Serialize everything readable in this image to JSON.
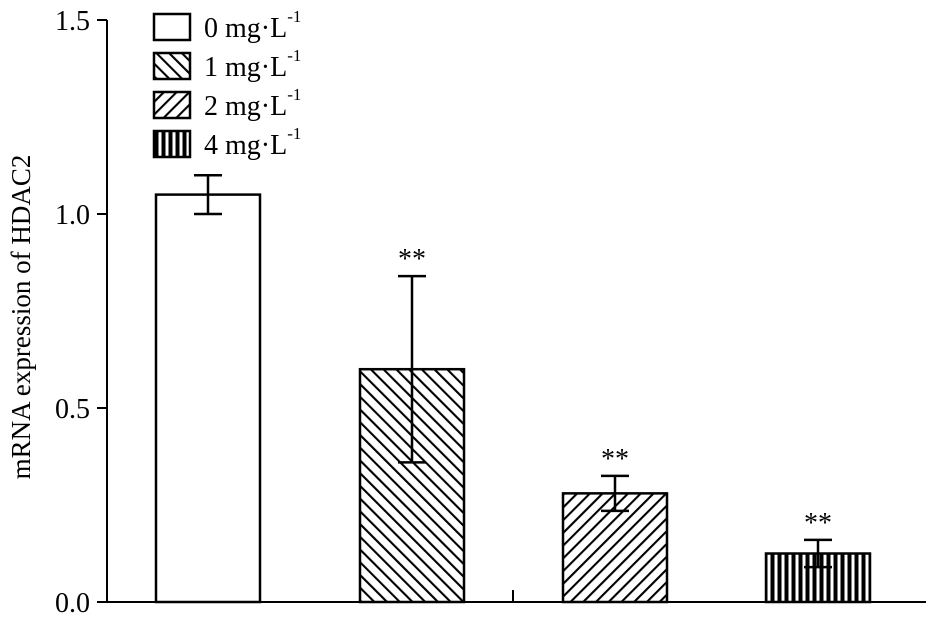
{
  "chart_data": {
    "type": "bar",
    "title": "",
    "xlabel": "",
    "ylabel": "mRNA expression of HDAC2",
    "ylim": [
      0,
      1.5
    ],
    "yticks": [
      "0.0",
      "0.5",
      "1.0",
      "1.5"
    ],
    "grid": false,
    "legend_position": "top-left",
    "categories": [
      "0 mg·L-1",
      "1 mg·L-1",
      "2 mg·L-1",
      "4 mg·L-1"
    ],
    "series": [
      {
        "values": [
          1.05,
          0.6,
          0.28,
          0.125
        ],
        "errors": [
          0.05,
          0.24,
          0.045,
          0.035
        ],
        "significance": [
          "",
          "**",
          "**",
          "**"
        ]
      }
    ],
    "legend": [
      {
        "text": "0 mg·L",
        "sup": "-1",
        "pattern": "none"
      },
      {
        "text": "1 mg·L",
        "sup": "-1",
        "pattern": "backslash-hatch"
      },
      {
        "text": "2 mg·L",
        "sup": "-1",
        "pattern": "slash-hatch"
      },
      {
        "text": "4 mg·L",
        "sup": "-1",
        "pattern": "vertical-lines"
      }
    ]
  }
}
